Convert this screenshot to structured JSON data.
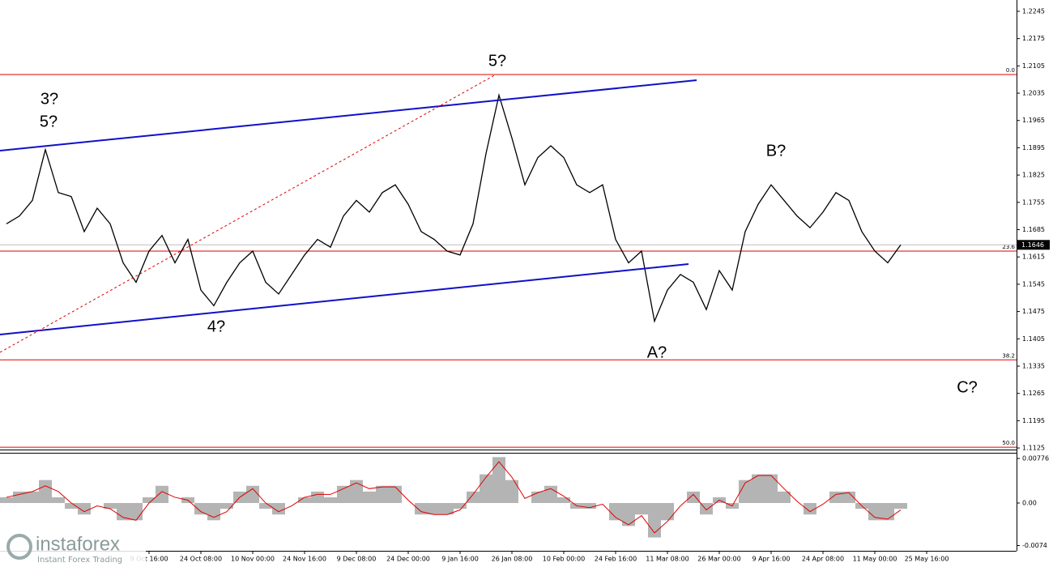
{
  "chart_data": {
    "type": "line",
    "categories": [
      null,
      null,
      null,
      null,
      null,
      null,
      null,
      null,
      null,
      null,
      null,
      "9 Oct 16:00",
      null,
      null,
      null,
      "24 Oct 08:00",
      null,
      null,
      null,
      "10 Nov 00:00",
      null,
      null,
      null,
      "24 Nov 16:00",
      null,
      null,
      null,
      "9 Dec 08:00",
      null,
      null,
      null,
      "24 Dec 00:00",
      null,
      null,
      null,
      "9 Jan 16:00",
      null,
      null,
      null,
      "26 Jan 08:00",
      null,
      null,
      null,
      "10 Feb 00:00",
      null,
      null,
      null,
      "24 Feb 16:00",
      null,
      null,
      null,
      "11 Mar 08:00",
      null,
      null,
      null,
      "26 Mar 00:00",
      null,
      null,
      null,
      "9 Apr 16:00",
      null,
      null,
      null,
      "24 Apr 08:00",
      null,
      null,
      null,
      "11 May 00:00",
      null,
      null,
      null,
      "25 May 16:00",
      null,
      null,
      null,
      null,
      null,
      null
    ],
    "series": [
      {
        "name": "price",
        "color": "#000000",
        "values": [
          1.17,
          1.172,
          1.176,
          1.189,
          1.178,
          1.177,
          1.168,
          1.174,
          1.17,
          1.16,
          1.155,
          1.163,
          1.167,
          1.16,
          1.166,
          1.153,
          1.149,
          1.155,
          1.16,
          1.163,
          1.155,
          1.152,
          1.157,
          1.162,
          1.166,
          1.164,
          1.172,
          1.176,
          1.173,
          1.178,
          1.18,
          1.175,
          1.168,
          1.166,
          1.163,
          1.162,
          1.17,
          1.188,
          1.203,
          1.192,
          1.18,
          1.187,
          1.19,
          1.187,
          1.18,
          1.178,
          1.18,
          1.166,
          1.16,
          1.163,
          1.145,
          1.153,
          1.157,
          1.155,
          1.148,
          1.158,
          1.153,
          1.168,
          1.175,
          1.18,
          1.176,
          1.172,
          1.169,
          1.173,
          1.178,
          1.176,
          1.168,
          1.163,
          1.16,
          1.1646,
          null,
          null,
          null,
          null,
          null,
          null,
          null,
          null
        ]
      }
    ],
    "ylim": [
      1.1121,
      1.2274
    ],
    "yticks": [
      1.2245,
      1.2175,
      1.2105,
      1.2035,
      1.1965,
      1.1895,
      1.1825,
      1.1755,
      1.1685,
      1.1615,
      1.1545,
      1.1475,
      1.1405,
      1.1335,
      1.1265,
      1.1195,
      1.1125
    ],
    "current_price": 1.1646,
    "fib_levels": [
      {
        "value": 1.2083,
        "label": "0.0"
      },
      {
        "value": 1.163,
        "label": "23.6"
      },
      {
        "value": 1.1351,
        "label": "38.2"
      },
      {
        "value": 1.1127,
        "label": "50.0"
      }
    ],
    "fib_color": "#e00000",
    "annotations": [
      {
        "text": "5?",
        "color": "#e00000"
      },
      {
        "text": "3?",
        "color": "#e00000"
      },
      {
        "text": "5?",
        "color": "#0000ff"
      },
      {
        "text": "4?",
        "color": "#e00000"
      },
      {
        "text": "A?",
        "color": "#e00000"
      },
      {
        "text": "B?",
        "color": "#e00000"
      },
      {
        "text": "C?",
        "color": "#e00000"
      }
    ],
    "oscillator": {
      "ylim": [
        -0.00832,
        0.00861
      ],
      "yticks": [
        0.00776,
        {
          "value": 0,
          "label": "0.00"
        },
        -0.0074
      ],
      "histogram": {
        "color": "#b4b4b4",
        "values": [
          0.001,
          0.002,
          0.002,
          0.004,
          0.001,
          -0.001,
          -0.002,
          0,
          -0.001,
          -0.003,
          -0.003,
          0.001,
          0.003,
          0,
          0.001,
          -0.002,
          -0.003,
          -0.001,
          0.002,
          0.003,
          -0.001,
          -0.002,
          0,
          0.001,
          0.002,
          0.001,
          0.003,
          0.004,
          0.002,
          0.003,
          0.003,
          0,
          -0.002,
          -0.002,
          -0.002,
          -0.001,
          0.002,
          0.005,
          0.008,
          0.004,
          0,
          0.002,
          0.003,
          0.001,
          -0.001,
          -0.001,
          0,
          -0.003,
          -0.004,
          -0.002,
          -0.006,
          -0.003,
          0,
          0.002,
          -0.002,
          0.001,
          -0.001,
          0.004,
          0.005,
          0.005,
          0.002,
          0,
          -0.002,
          0,
          0.002,
          0.002,
          -0.001,
          -0.003,
          -0.003,
          -0.001,
          null,
          null,
          null,
          null,
          null,
          null,
          null,
          null
        ]
      },
      "signal": {
        "color": "#e00000",
        "values": [
          0.001,
          0.0015,
          0.002,
          0.003,
          0.002,
          0,
          -0.0015,
          -0.0005,
          -0.001,
          -0.0025,
          -0.003,
          0,
          0.002,
          0.001,
          0.0005,
          -0.0015,
          -0.0025,
          -0.0015,
          0.001,
          0.0025,
          0,
          -0.0015,
          -0.0005,
          0.001,
          0.0015,
          0.0015,
          0.0025,
          0.0035,
          0.0025,
          0.0028,
          0.0028,
          0.0005,
          -0.0015,
          -0.002,
          -0.002,
          -0.0012,
          0.0015,
          0.0045,
          0.0072,
          0.0045,
          0.0008,
          0.0018,
          0.0025,
          0.0012,
          -0.0005,
          -0.0008,
          -0.0002,
          -0.0025,
          -0.0038,
          -0.0022,
          -0.0052,
          -0.0032,
          -0.0005,
          0.0015,
          -0.0012,
          0.0005,
          -0.0005,
          0.0035,
          0.0048,
          0.0048,
          0.0025,
          0.0003,
          -0.0015,
          -0.0002,
          0.0015,
          0.0018,
          -0.0005,
          -0.0025,
          -0.0028,
          -0.0012,
          null,
          null,
          null,
          null,
          null,
          null,
          null,
          null
        ]
      }
    },
    "branding": {
      "name": "instaforex",
      "tagline": "Instant Forex Trading"
    }
  }
}
